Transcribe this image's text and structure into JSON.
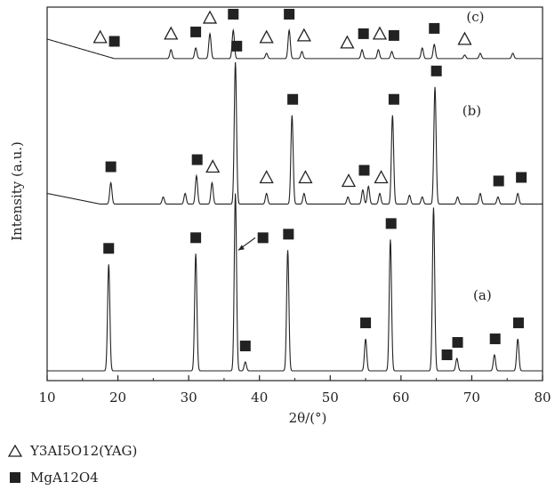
{
  "chart_data": {
    "type": "line",
    "xlabel": "2θ/(°)",
    "ylabel": "Intensity (a.u.)",
    "xlim": [
      10,
      80
    ],
    "xticks": [
      10,
      20,
      30,
      40,
      50,
      60,
      70,
      80
    ],
    "legend": [
      {
        "marker": "triangle",
        "label": "Y3AI5O12(YAG)"
      },
      {
        "marker": "square",
        "label": "MgA12O4"
      }
    ],
    "series": [
      {
        "name": "(a)",
        "baseline": 0.0,
        "peaks": [
          {
            "x": 18.7,
            "h": 0.3
          },
          {
            "x": 31.0,
            "h": 0.33
          },
          {
            "x": 36.6,
            "h": 0.5
          },
          {
            "x": 38.0,
            "h": 0.025
          },
          {
            "x": 44.0,
            "h": 0.34
          },
          {
            "x": 55.0,
            "h": 0.09
          },
          {
            "x": 58.5,
            "h": 0.37
          },
          {
            "x": 64.6,
            "h": 0.46
          },
          {
            "x": 67.9,
            "h": 0.035
          },
          {
            "x": 73.2,
            "h": 0.045
          },
          {
            "x": 76.5,
            "h": 0.09
          }
        ],
        "square_markers": [
          18.7,
          31.0,
          38.0,
          44.1,
          55.0,
          58.6,
          66.5,
          68.0,
          73.3,
          76.6
        ],
        "triangle_markers": []
      },
      {
        "name": "(b)",
        "baseline": 0.47,
        "peaks": [
          {
            "x": 19.0,
            "h": 0.06
          },
          {
            "x": 26.4,
            "h": 0.02
          },
          {
            "x": 29.5,
            "h": 0.03
          },
          {
            "x": 31.1,
            "h": 0.08
          },
          {
            "x": 33.3,
            "h": 0.06
          },
          {
            "x": 36.6,
            "h": 0.4
          },
          {
            "x": 41.0,
            "h": 0.03
          },
          {
            "x": 44.6,
            "h": 0.25
          },
          {
            "x": 46.3,
            "h": 0.03
          },
          {
            "x": 52.5,
            "h": 0.02
          },
          {
            "x": 54.6,
            "h": 0.04
          },
          {
            "x": 55.4,
            "h": 0.05
          },
          {
            "x": 57.0,
            "h": 0.03
          },
          {
            "x": 58.8,
            "h": 0.25
          },
          {
            "x": 61.2,
            "h": 0.025
          },
          {
            "x": 63.0,
            "h": 0.02
          },
          {
            "x": 64.8,
            "h": 0.33
          },
          {
            "x": 68.0,
            "h": 0.02
          },
          {
            "x": 71.2,
            "h": 0.03
          },
          {
            "x": 73.7,
            "h": 0.02
          },
          {
            "x": 76.5,
            "h": 0.03
          }
        ],
        "square_markers": [
          19.0,
          31.2,
          36.8,
          44.7,
          54.8,
          59.0,
          65.0,
          73.8,
          77.0
        ],
        "triangle_markers": [
          33.4,
          41.0,
          46.5,
          52.6,
          57.2
        ]
      },
      {
        "name": "(c)",
        "baseline": 0.88,
        "peaks": [
          {
            "x": 27.5,
            "h": 0.025
          },
          {
            "x": 31.0,
            "h": 0.03
          },
          {
            "x": 33.0,
            "h": 0.07
          },
          {
            "x": 36.3,
            "h": 0.08
          },
          {
            "x": 41.0,
            "h": 0.015
          },
          {
            "x": 44.2,
            "h": 0.08
          },
          {
            "x": 46.0,
            "h": 0.02
          },
          {
            "x": 54.5,
            "h": 0.025
          },
          {
            "x": 56.8,
            "h": 0.025
          },
          {
            "x": 58.7,
            "h": 0.02
          },
          {
            "x": 63.0,
            "h": 0.03
          },
          {
            "x": 64.7,
            "h": 0.04
          },
          {
            "x": 69.0,
            "h": 0.01
          },
          {
            "x": 71.2,
            "h": 0.015
          },
          {
            "x": 75.8,
            "h": 0.015
          }
        ],
        "square_markers": [
          19.5,
          31.0,
          36.3,
          44.2,
          54.7,
          59.0,
          64.7
        ],
        "triangle_markers": [
          17.5,
          27.5,
          33.0,
          41.0,
          46.3,
          52.4,
          57.0,
          69.0
        ]
      }
    ]
  }
}
